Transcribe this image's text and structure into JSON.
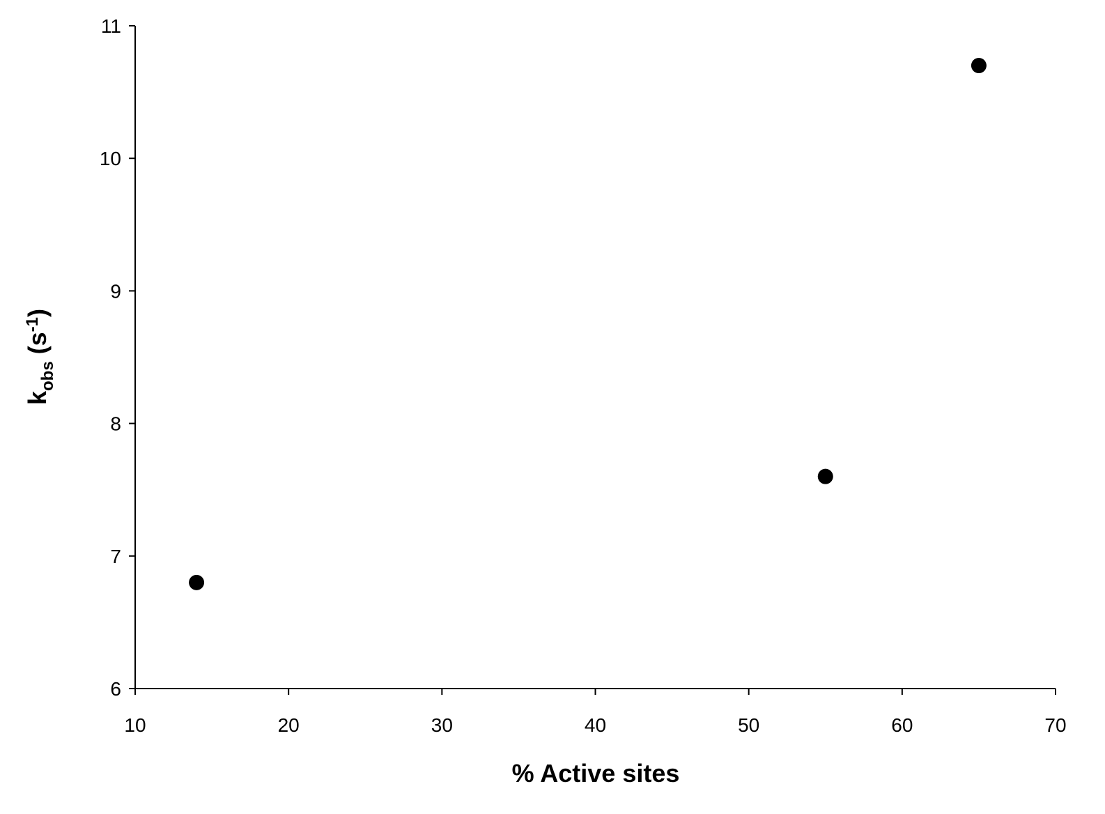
{
  "chart_data": {
    "type": "scatter",
    "x_label": "% Active sites",
    "y_label": [
      "k",
      "obs",
      " (s",
      "-1",
      ")"
    ],
    "x": [
      14,
      55,
      65
    ],
    "series": [
      {
        "values": [
          6.8,
          7.6,
          10.7
        ],
        "color": "#000000"
      }
    ],
    "xlim": [
      10,
      70
    ],
    "xticks": [
      10,
      20,
      30,
      40,
      50,
      60,
      70
    ],
    "ylim": [
      6,
      11
    ],
    "yticks": [
      6,
      7,
      8,
      9,
      10,
      11
    ],
    "grid": false
  }
}
